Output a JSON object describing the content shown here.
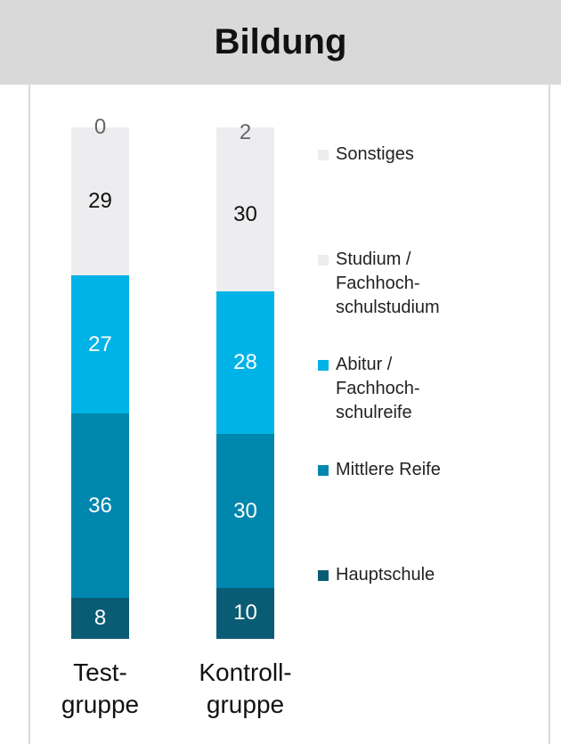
{
  "chart_data": {
    "type": "stacked_bar",
    "title": "Bildung",
    "categories": [
      "Test-\ngruppe",
      "Kontroll-\ngruppe"
    ],
    "ylim": [
      0,
      100
    ],
    "series": [
      {
        "name": "Hauptschule",
        "color": "#0a5c74",
        "label_color": "#ffffff",
        "values": [
          8,
          10
        ]
      },
      {
        "name": "Mittlere Reife",
        "color": "#0087ad",
        "label_color": "#ffffff",
        "values": [
          36,
          30
        ]
      },
      {
        "name": "Abitur /\nFachhoch-\nschulreife",
        "color": "#00b3e6",
        "label_color": "#ffffff",
        "values": [
          27,
          28
        ]
      },
      {
        "name": "Studium /\nFachhoch-\nschulstudium",
        "color": "#ededf0",
        "label_color": "#111111",
        "values": [
          29,
          30
        ]
      },
      {
        "name": "Sonstiges",
        "color": "#ededf0",
        "label_color": "#666666",
        "values": [
          0,
          2
        ]
      }
    ]
  }
}
